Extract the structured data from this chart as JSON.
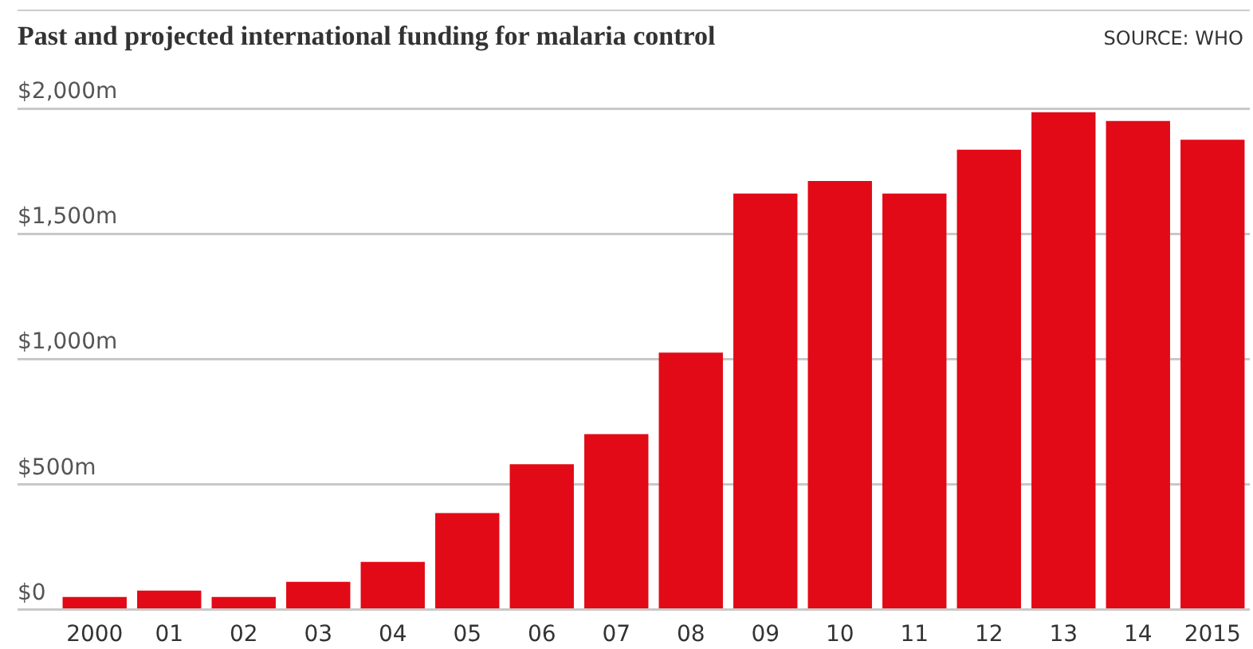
{
  "chart_data": {
    "type": "bar",
    "title": "Past and projected international funding for malaria control",
    "annotations": [
      "SOURCE: WHO"
    ],
    "categories": [
      "2000",
      "01",
      "02",
      "03",
      "04",
      "05",
      "06",
      "07",
      "08",
      "09",
      "10",
      "11",
      "12",
      "13",
      "14",
      "2015"
    ],
    "values": [
      50,
      75,
      50,
      110,
      190,
      385,
      580,
      700,
      1025,
      1660,
      1710,
      1660,
      1835,
      1985,
      1950,
      1875
    ],
    "color": "#e20a17",
    "ylim": [
      0,
      2000
    ],
    "yticks": [
      {
        "value": 0,
        "label": "$0"
      },
      {
        "value": 500,
        "label": "$500m"
      },
      {
        "value": 1000,
        "label": "$1,000m"
      },
      {
        "value": 1500,
        "label": "$1,500m"
      },
      {
        "value": 2000,
        "label": "$2,000m"
      }
    ],
    "grid": "y",
    "legend": false
  }
}
